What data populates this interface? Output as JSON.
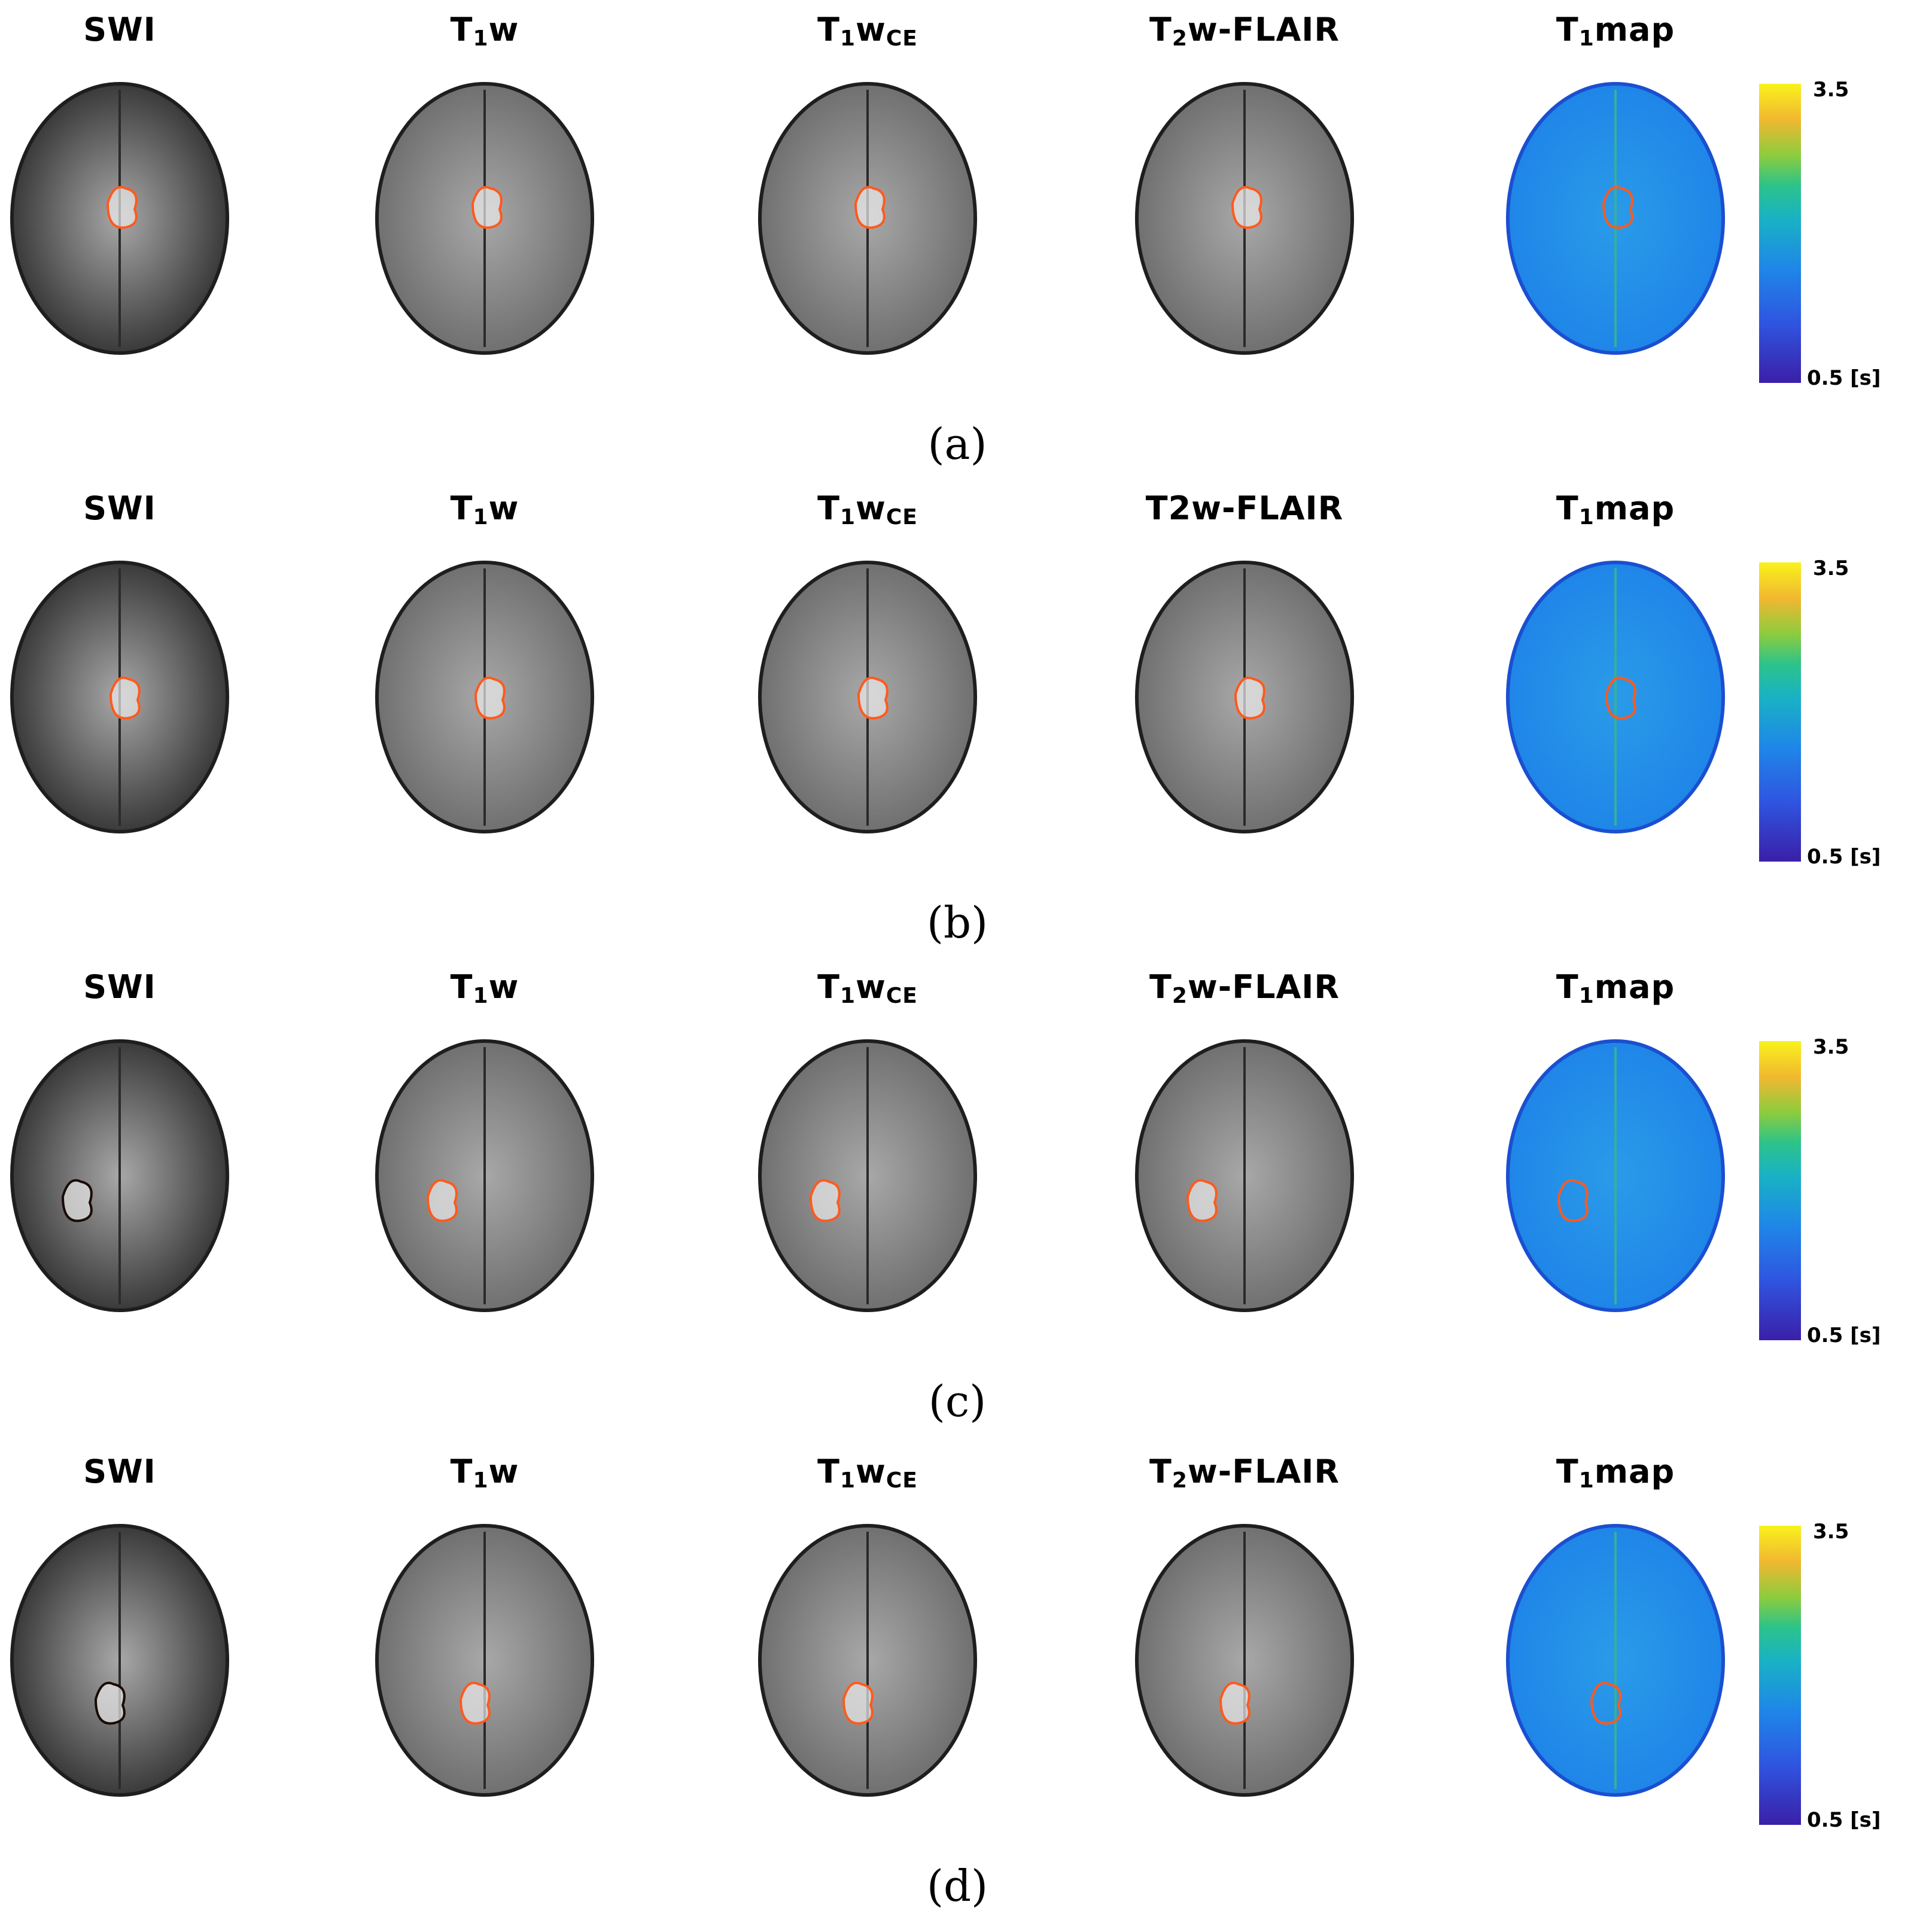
{
  "rows": [
    {
      "label": "(a)",
      "titles": [
        {
          "main": "SWI",
          "sub": "",
          "tail": ""
        },
        {
          "main": "T",
          "sub": "1",
          "tail": "w"
        },
        {
          "main": "T",
          "sub": "1",
          "tail": "w",
          "sub2": "CE"
        },
        {
          "main": "T",
          "sub": "2",
          "tail": "w-FLAIR"
        },
        {
          "main": "T",
          "sub": "1",
          "tail": "map"
        }
      ],
      "colorbar": {
        "max": "3.5",
        "min": "0.5 [s]"
      }
    },
    {
      "label": "(b)",
      "titles": [
        {
          "main": "SWI",
          "sub": "",
          "tail": ""
        },
        {
          "main": "T",
          "sub": "1",
          "tail": "w"
        },
        {
          "main": "T",
          "sub": "1",
          "tail": "w",
          "sub2": "CE"
        },
        {
          "main": "T2w-FLAIR",
          "sub": "",
          "tail": ""
        },
        {
          "main": "T",
          "sub": "1",
          "tail": "map"
        }
      ],
      "colorbar": {
        "max": "3.5",
        "min": "0.5 [s]"
      }
    },
    {
      "label": "(c)",
      "titles": [
        {
          "main": "SWI",
          "sub": "",
          "tail": ""
        },
        {
          "main": "T",
          "sub": "1",
          "tail": "w"
        },
        {
          "main": "T",
          "sub": "1",
          "tail": "w",
          "sub2": "CE"
        },
        {
          "main": "T",
          "sub": "2",
          "tail": "w-FLAIR"
        },
        {
          "main": "T",
          "sub": "1",
          "tail": "map"
        }
      ],
      "colorbar": {
        "max": "3.5",
        "min": "0.5 [s]"
      }
    },
    {
      "label": "(d)",
      "titles": [
        {
          "main": "SWI",
          "sub": "",
          "tail": ""
        },
        {
          "main": "T",
          "sub": "1",
          "tail": "w"
        },
        {
          "main": "T",
          "sub": "1",
          "tail": "w",
          "sub2": "CE"
        },
        {
          "main": "T",
          "sub": "2",
          "tail": "w-FLAIR"
        },
        {
          "main": "T",
          "sub": "1",
          "tail": "map"
        }
      ],
      "colorbar": {
        "max": "3.5",
        "min": "0.5 [s]"
      }
    }
  ],
  "colors": {
    "contour": "#ff5a1e",
    "contour_dark": "#1a0a05",
    "scan_dark": "#3a3a3a",
    "scan_mid": "#707070",
    "scan_light": "#a8a8a8",
    "map_base": "#1f86e8"
  }
}
